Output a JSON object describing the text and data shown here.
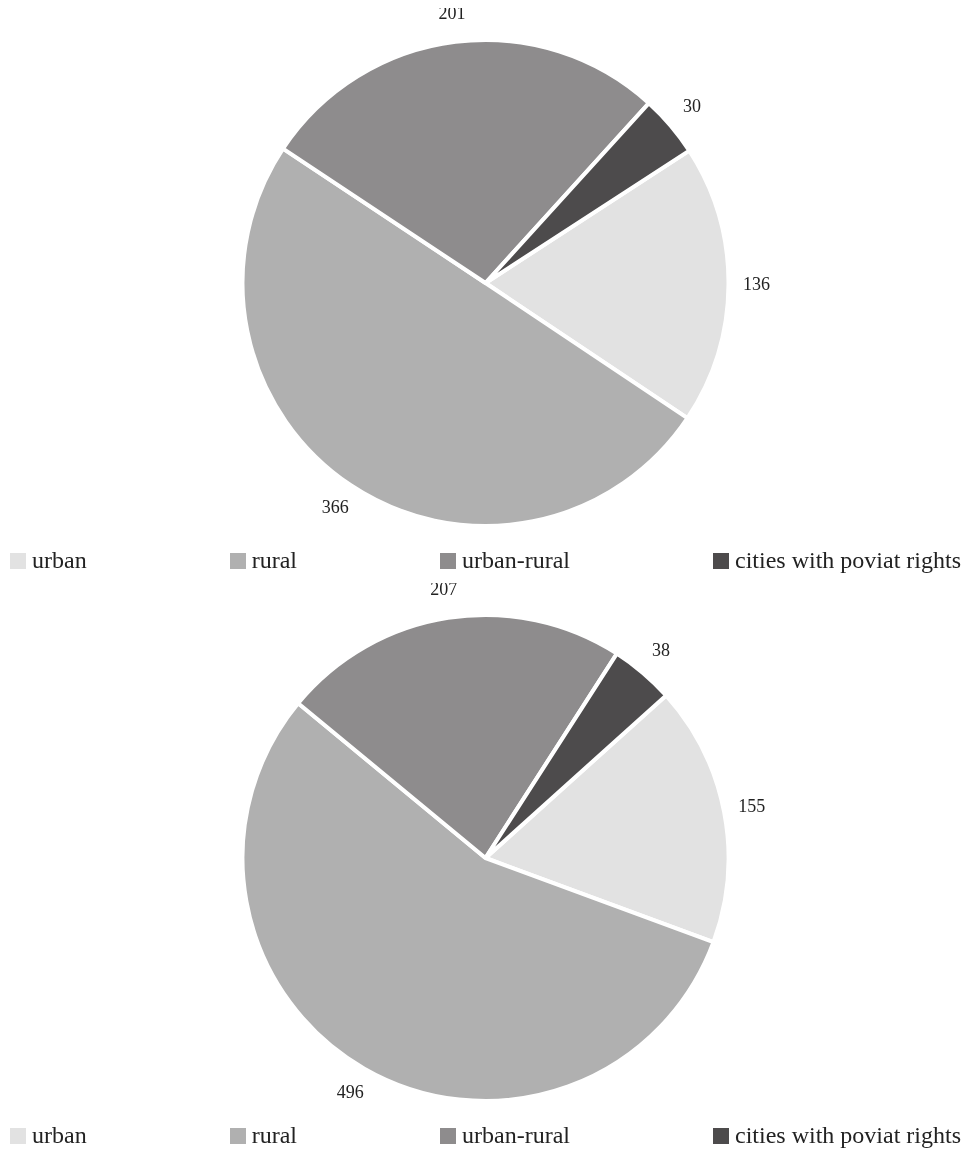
{
  "chart_data": [
    {
      "type": "pie",
      "categories": [
        "urban",
        "rural",
        "urban-rural",
        "cities with poviat rights"
      ],
      "values": [
        136,
        366,
        201,
        30
      ],
      "colors": [
        "#e2e2e2",
        "#b0b0b0",
        "#8e8c8d",
        "#4d4b4c"
      ],
      "data_labels": true,
      "legend": "bottom"
    },
    {
      "type": "pie",
      "categories": [
        "urban",
        "rural",
        "urban-rural",
        "cities with poviat rights"
      ],
      "values": [
        155,
        496,
        207,
        38
      ],
      "colors": [
        "#e2e2e2",
        "#b0b0b0",
        "#8e8c8d",
        "#4d4b4c"
      ],
      "data_labels": true,
      "legend": "bottom"
    }
  ]
}
